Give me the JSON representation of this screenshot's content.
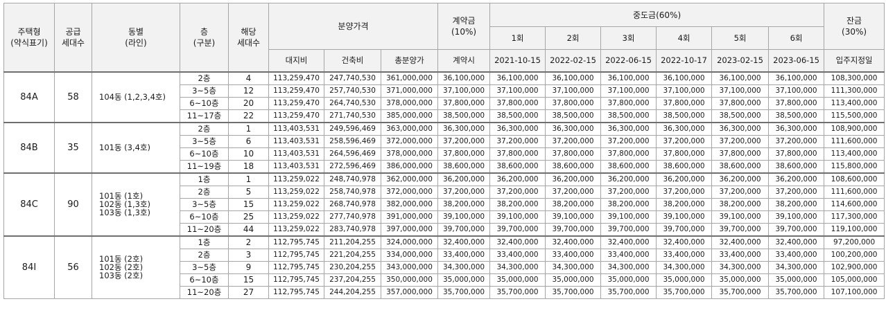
{
  "headers": {
    "type": "주택형\n(약식표기)",
    "supply": "공급\n세대수",
    "dong": "동별\n(라인)",
    "floor": "층\n(구분)",
    "units": "해당\n세대수",
    "price": "분양가격",
    "land": "대지비",
    "building": "건축비",
    "total": "총분양가",
    "contract": "계약금\n(10%)",
    "contract_when": "계약시",
    "middle": "중도금(60%)",
    "balance": "잔금\n(30%)",
    "balance_when": "입주지정일",
    "installments": [
      {
        "label": "1회",
        "date": "2021-10-15"
      },
      {
        "label": "2회",
        "date": "2022-02-15"
      },
      {
        "label": "3회",
        "date": "2022-06-15"
      },
      {
        "label": "4회",
        "date": "2022-10-17"
      },
      {
        "label": "5회",
        "date": "2023-02-15"
      },
      {
        "label": "6회",
        "date": "2023-06-15"
      }
    ]
  },
  "groups": [
    {
      "type": "84A",
      "supply": "58",
      "lines": "104동 (1,2,3,4호)",
      "rows": [
        {
          "floor": "2층",
          "units": "4",
          "land": "113,259,470",
          "building": "247,740,530",
          "total": "361,000,000",
          "contract": "36,100,000",
          "middle": "36,100,000",
          "balance": "108,300,000"
        },
        {
          "floor": "3~5층",
          "units": "12",
          "land": "113,259,470",
          "building": "257,740,530",
          "total": "371,000,000",
          "contract": "37,100,000",
          "middle": "37,100,000",
          "balance": "111,300,000"
        },
        {
          "floor": "6~10층",
          "units": "20",
          "land": "113,259,470",
          "building": "264,740,530",
          "total": "378,000,000",
          "contract": "37,800,000",
          "middle": "37,800,000",
          "balance": "113,400,000"
        },
        {
          "floor": "11~17층",
          "units": "22",
          "land": "113,259,470",
          "building": "271,740,530",
          "total": "385,000,000",
          "contract": "38,500,000",
          "middle": "38,500,000",
          "balance": "115,500,000"
        }
      ]
    },
    {
      "type": "84B",
      "supply": "35",
      "lines": "101동 (3,4호)",
      "rows": [
        {
          "floor": "2층",
          "units": "1",
          "land": "113,403,531",
          "building": "249,596,469",
          "total": "363,000,000",
          "contract": "36,300,000",
          "middle": "36,300,000",
          "balance": "108,900,000"
        },
        {
          "floor": "3~5층",
          "units": "6",
          "land": "113,403,531",
          "building": "258,596,469",
          "total": "372,000,000",
          "contract": "37,200,000",
          "middle": "37,200,000",
          "balance": "111,600,000"
        },
        {
          "floor": "6~10층",
          "units": "10",
          "land": "113,403,531",
          "building": "264,596,469",
          "total": "378,000,000",
          "contract": "37,800,000",
          "middle": "37,800,000",
          "balance": "113,400,000"
        },
        {
          "floor": "11~19층",
          "units": "18",
          "land": "113,403,531",
          "building": "272,596,469",
          "total": "386,000,000",
          "contract": "38,600,000",
          "middle": "38,600,000",
          "balance": "115,800,000"
        }
      ]
    },
    {
      "type": "84C",
      "supply": "90",
      "lines": "101동 (1호)\n102동 (1,3호)\n103동 (1,3호)",
      "rows": [
        {
          "floor": "1층",
          "units": "1",
          "land": "113,259,022",
          "building": "248,740,978",
          "total": "362,000,000",
          "contract": "36,200,000",
          "middle": "36,200,000",
          "balance": "108,600,000"
        },
        {
          "floor": "2층",
          "units": "5",
          "land": "113,259,022",
          "building": "258,740,978",
          "total": "372,000,000",
          "contract": "37,200,000",
          "middle": "37,200,000",
          "balance": "111,600,000"
        },
        {
          "floor": "3~5층",
          "units": "15",
          "land": "113,259,022",
          "building": "268,740,978",
          "total": "382,000,000",
          "contract": "38,200,000",
          "middle": "38,200,000",
          "balance": "114,600,000"
        },
        {
          "floor": "6~10층",
          "units": "25",
          "land": "113,259,022",
          "building": "277,740,978",
          "total": "391,000,000",
          "contract": "39,100,000",
          "middle": "39,100,000",
          "balance": "117,300,000"
        },
        {
          "floor": "11~20층",
          "units": "44",
          "land": "113,259,022",
          "building": "283,740,978",
          "total": "397,000,000",
          "contract": "39,700,000",
          "middle": "39,700,000",
          "balance": "119,100,000"
        }
      ]
    },
    {
      "type": "84I",
      "supply": "56",
      "lines": "101동 (2호)\n102동 (2호)\n103동 (2호)",
      "rows": [
        {
          "floor": "1층",
          "units": "2",
          "land": "112,795,745",
          "building": "211,204,255",
          "total": "324,000,000",
          "contract": "32,400,000",
          "middle": "32,400,000",
          "balance": "97,200,000"
        },
        {
          "floor": "2층",
          "units": "3",
          "land": "112,795,745",
          "building": "221,204,255",
          "total": "334,000,000",
          "contract": "33,400,000",
          "middle": "33,400,000",
          "balance": "100,200,000"
        },
        {
          "floor": "3~5층",
          "units": "9",
          "land": "112,795,745",
          "building": "230,204,255",
          "total": "343,000,000",
          "contract": "34,300,000",
          "middle": "34,300,000",
          "balance": "102,900,000"
        },
        {
          "floor": "6~10층",
          "units": "15",
          "land": "112,795,745",
          "building": "237,204,255",
          "total": "350,000,000",
          "contract": "35,000,000",
          "middle": "35,000,000",
          "balance": "105,000,000"
        },
        {
          "floor": "11~20층",
          "units": "27",
          "land": "112,795,745",
          "building": "244,204,255",
          "total": "357,000,000",
          "contract": "35,700,000",
          "middle": "35,700,000",
          "balance": "107,100,000"
        }
      ]
    }
  ]
}
